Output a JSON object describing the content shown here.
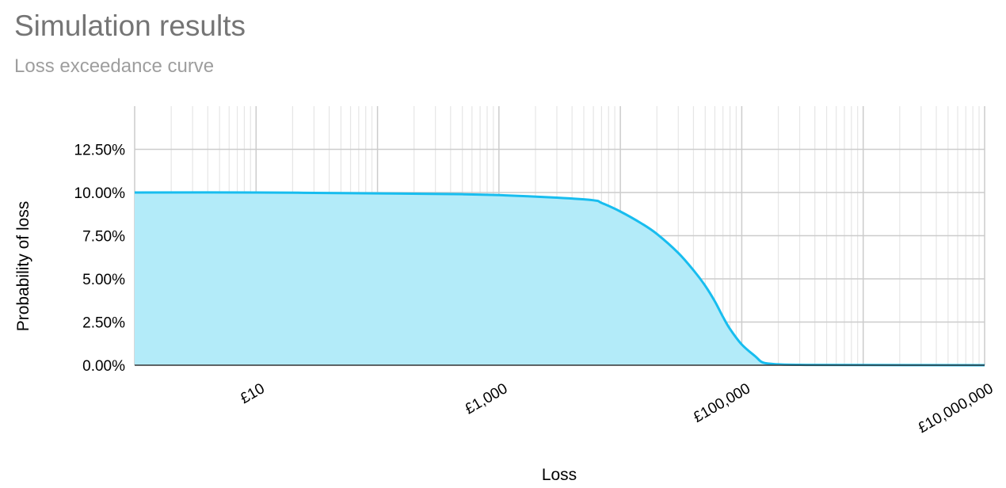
{
  "title": "Simulation results",
  "subtitle": "Loss exceedance curve",
  "chart_data": {
    "type": "area",
    "title": "Simulation results",
    "subtitle": "Loss exceedance curve",
    "xlabel": "Loss",
    "ylabel": "Probability of loss",
    "x_scale": "log",
    "xlim": [
      1,
      10000000
    ],
    "ylim": [
      0,
      0.15
    ],
    "x_ticks": [
      {
        "value": 10,
        "label": "£10"
      },
      {
        "value": 1000,
        "label": "£1,000"
      },
      {
        "value": 100000,
        "label": "£100,000"
      },
      {
        "value": 10000000,
        "label": "£10,000,000"
      }
    ],
    "y_ticks": [
      {
        "value": 0,
        "label": "0.00%"
      },
      {
        "value": 0.025,
        "label": "2.50%"
      },
      {
        "value": 0.05,
        "label": "5.00%"
      },
      {
        "value": 0.075,
        "label": "7.50%"
      },
      {
        "value": 0.1,
        "label": "10.00%"
      },
      {
        "value": 0.125,
        "label": "12.50%"
      }
    ],
    "series": [
      {
        "color": "#18bdef",
        "fill_color": "#b3ebf9",
        "x": [
          1,
          10,
          100,
          500,
          1000,
          3000,
          6000,
          7000,
          10000,
          15000,
          20000,
          30000,
          40000,
          50000,
          60000,
          70000,
          80000,
          100000,
          130000,
          150000,
          200000,
          300000,
          1000000,
          10000000
        ],
        "y": [
          0.1,
          0.1,
          0.0995,
          0.099,
          0.0985,
          0.097,
          0.0955,
          0.094,
          0.089,
          0.082,
          0.076,
          0.065,
          0.055,
          0.046,
          0.037,
          0.028,
          0.021,
          0.012,
          0.005,
          0.0015,
          0.0005,
          0.0002,
          0.0001,
          0.0
        ]
      }
    ],
    "grid": true,
    "legend": "none"
  },
  "colors": {
    "grid_major": "#cccccc",
    "grid_minor": "#e6e6e6",
    "baseline": "#333333"
  }
}
